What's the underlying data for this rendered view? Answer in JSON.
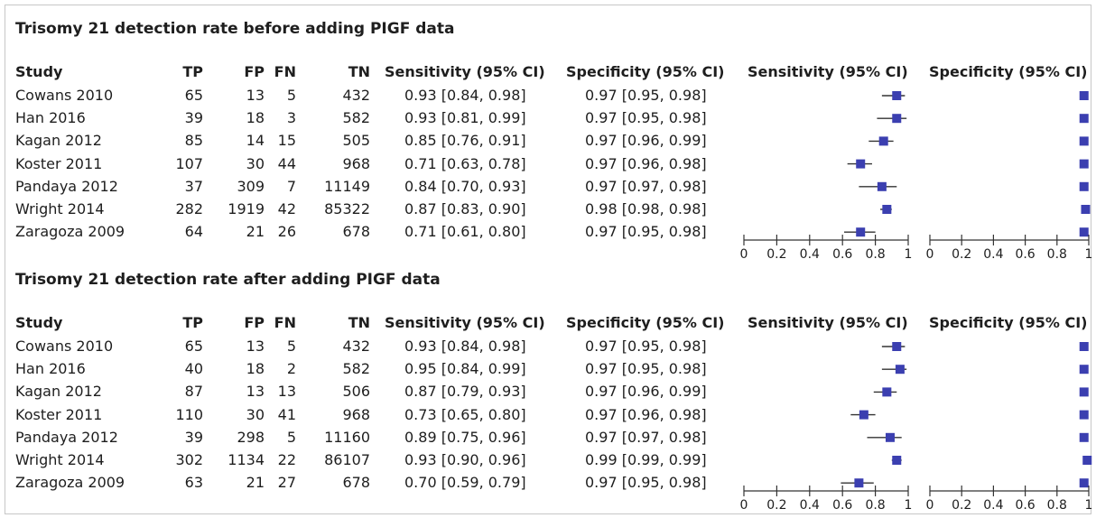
{
  "headers": {
    "study": "Study",
    "tp": "TP",
    "fp": "FP",
    "fn": "FN",
    "tn": "TN",
    "sens_ci": "Sensitivity (95% CI)",
    "spec_ci": "Specificity (95% CI)",
    "sens_plot": "Sensitivity (95% CI)",
    "spec_plot": "Specificity (95% CI)"
  },
  "panels": [
    {
      "title": "Trisomy 21 detection rate before adding PIGF data",
      "rows": [
        {
          "study": "Cowans 2010",
          "tp": "65",
          "fp": "13",
          "fn": "5",
          "tn": "432",
          "sens_ci": "0.93 [0.84, 0.98]",
          "spec_ci": "0.97 [0.95, 0.98]"
        },
        {
          "study": "Han 2016",
          "tp": "39",
          "fp": "18",
          "fn": "3",
          "tn": "582",
          "sens_ci": "0.93 [0.81, 0.99]",
          "spec_ci": "0.97 [0.95, 0.98]"
        },
        {
          "study": "Kagan 2012",
          "tp": "85",
          "fp": "14",
          "fn": "15",
          "tn": "505",
          "sens_ci": "0.85 [0.76, 0.91]",
          "spec_ci": "0.97 [0.96, 0.99]"
        },
        {
          "study": "Koster 2011",
          "tp": "107",
          "fp": "30",
          "fn": "44",
          "tn": "968",
          "sens_ci": "0.71 [0.63, 0.78]",
          "spec_ci": "0.97 [0.96, 0.98]"
        },
        {
          "study": "Pandaya 2012",
          "tp": "37",
          "fp": "309",
          "fn": "7",
          "tn": "11149",
          "sens_ci": "0.84 [0.70, 0.93]",
          "spec_ci": "0.97 [0.97, 0.98]"
        },
        {
          "study": "Wright 2014",
          "tp": "282",
          "fp": "1919",
          "fn": "42",
          "tn": "85322",
          "sens_ci": "0.87 [0.83, 0.90]",
          "spec_ci": "0.98 [0.98, 0.98]"
        },
        {
          "study": "Zaragoza 2009",
          "tp": "64",
          "fp": "21",
          "fn": "26",
          "tn": "678",
          "sens_ci": "0.71 [0.61, 0.80]",
          "spec_ci": "0.97 [0.95, 0.98]"
        }
      ]
    },
    {
      "title": "Trisomy 21 detection rate after adding PIGF data",
      "rows": [
        {
          "study": "Cowans 2010",
          "tp": "65",
          "fp": "13",
          "fn": "5",
          "tn": "432",
          "sens_ci": "0.93 [0.84, 0.98]",
          "spec_ci": "0.97 [0.95, 0.98]"
        },
        {
          "study": "Han 2016",
          "tp": "40",
          "fp": "18",
          "fn": "2",
          "tn": "582",
          "sens_ci": "0.95 [0.84, 0.99]",
          "spec_ci": "0.97 [0.95, 0.98]"
        },
        {
          "study": "Kagan 2012",
          "tp": "87",
          "fp": "13",
          "fn": "13",
          "tn": "506",
          "sens_ci": "0.87 [0.79, 0.93]",
          "spec_ci": "0.97 [0.96, 0.99]"
        },
        {
          "study": "Koster 2011",
          "tp": "110",
          "fp": "30",
          "fn": "41",
          "tn": "968",
          "sens_ci": "0.73 [0.65, 0.80]",
          "spec_ci": "0.97 [0.96, 0.98]"
        },
        {
          "study": "Pandaya 2012",
          "tp": "39",
          "fp": "298",
          "fn": "5",
          "tn": "11160",
          "sens_ci": "0.89 [0.75, 0.96]",
          "spec_ci": "0.97 [0.97, 0.98]"
        },
        {
          "study": "Wright 2014",
          "tp": "302",
          "fp": "1134",
          "fn": "22",
          "tn": "86107",
          "sens_ci": "0.93 [0.90, 0.96]",
          "spec_ci": "0.99 [0.99, 0.99]"
        },
        {
          "study": "Zaragoza 2009",
          "tp": "63",
          "fp": "21",
          "fn": "27",
          "tn": "678",
          "sens_ci": "0.70 [0.59, 0.79]",
          "spec_ci": "0.97 [0.95, 0.98]"
        }
      ]
    }
  ],
  "chart_data": [
    {
      "type": "forest",
      "title": "Trisomy 21 detection rate before adding PIGF data",
      "x_ticks": [
        "0",
        "0.2",
        "0.4",
        "0.6",
        "0.8",
        "1"
      ],
      "xlim": [
        0,
        1
      ],
      "marker_color": "#3b3fb0",
      "categories": [
        "Cowans 2010",
        "Han 2016",
        "Kagan 2012",
        "Koster 2011",
        "Pandaya 2012",
        "Wright 2014",
        "Zaragoza 2009"
      ],
      "sensitivity": [
        {
          "est": 0.93,
          "lo": 0.84,
          "hi": 0.98
        },
        {
          "est": 0.93,
          "lo": 0.81,
          "hi": 0.99
        },
        {
          "est": 0.85,
          "lo": 0.76,
          "hi": 0.91
        },
        {
          "est": 0.71,
          "lo": 0.63,
          "hi": 0.78
        },
        {
          "est": 0.84,
          "lo": 0.7,
          "hi": 0.93
        },
        {
          "est": 0.87,
          "lo": 0.83,
          "hi": 0.9
        },
        {
          "est": 0.71,
          "lo": 0.61,
          "hi": 0.8
        }
      ],
      "specificity": [
        {
          "est": 0.97,
          "lo": 0.95,
          "hi": 0.98
        },
        {
          "est": 0.97,
          "lo": 0.95,
          "hi": 0.98
        },
        {
          "est": 0.97,
          "lo": 0.96,
          "hi": 0.99
        },
        {
          "est": 0.97,
          "lo": 0.96,
          "hi": 0.98
        },
        {
          "est": 0.97,
          "lo": 0.97,
          "hi": 0.98
        },
        {
          "est": 0.98,
          "lo": 0.98,
          "hi": 0.98
        },
        {
          "est": 0.97,
          "lo": 0.95,
          "hi": 0.98
        }
      ]
    },
    {
      "type": "forest",
      "title": "Trisomy 21 detection rate after adding PIGF data",
      "x_ticks": [
        "0",
        "0.2",
        "0.4",
        "0.6",
        "0.8",
        "1"
      ],
      "xlim": [
        0,
        1
      ],
      "marker_color": "#3b3fb0",
      "categories": [
        "Cowans 2010",
        "Han 2016",
        "Kagan 2012",
        "Koster 2011",
        "Pandaya 2012",
        "Wright 2014",
        "Zaragoza 2009"
      ],
      "sensitivity": [
        {
          "est": 0.93,
          "lo": 0.84,
          "hi": 0.98
        },
        {
          "est": 0.95,
          "lo": 0.84,
          "hi": 0.99
        },
        {
          "est": 0.87,
          "lo": 0.79,
          "hi": 0.93
        },
        {
          "est": 0.73,
          "lo": 0.65,
          "hi": 0.8
        },
        {
          "est": 0.89,
          "lo": 0.75,
          "hi": 0.96
        },
        {
          "est": 0.93,
          "lo": 0.9,
          "hi": 0.96
        },
        {
          "est": 0.7,
          "lo": 0.59,
          "hi": 0.79
        }
      ],
      "specificity": [
        {
          "est": 0.97,
          "lo": 0.95,
          "hi": 0.98
        },
        {
          "est": 0.97,
          "lo": 0.95,
          "hi": 0.98
        },
        {
          "est": 0.97,
          "lo": 0.96,
          "hi": 0.99
        },
        {
          "est": 0.97,
          "lo": 0.96,
          "hi": 0.98
        },
        {
          "est": 0.97,
          "lo": 0.97,
          "hi": 0.98
        },
        {
          "est": 0.99,
          "lo": 0.99,
          "hi": 0.99
        },
        {
          "est": 0.97,
          "lo": 0.95,
          "hi": 0.98
        }
      ]
    }
  ]
}
